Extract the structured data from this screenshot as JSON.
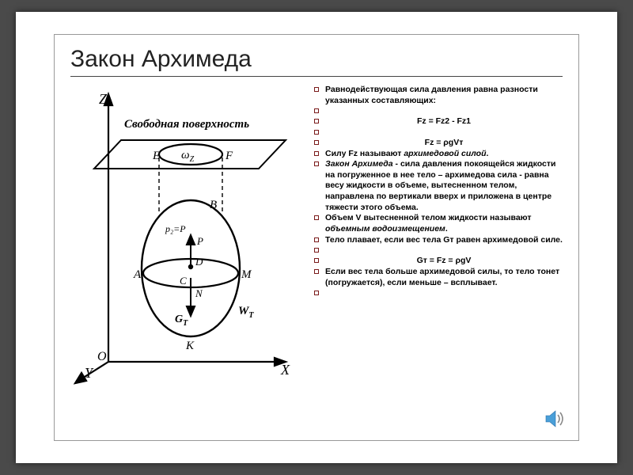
{
  "title": "Закон Архимеда",
  "diagram": {
    "stroke": "#000000",
    "stroke_width": 2.2,
    "thin_stroke": 1.2,
    "font_family": "Times New Roman, serif",
    "axis_font_size": 18,
    "label_font_size": 14,
    "script_font_size": 10,
    "axes": {
      "Z": "Z",
      "X": "X",
      "Y": "Y",
      "O": "O"
    },
    "surface_label": "Свободная поверхность",
    "omega": "ω",
    "omega_sub": "Z",
    "labels": {
      "E": "E",
      "F": "F",
      "B": "B",
      "A": "A",
      "M": "M",
      "D": "D",
      "C": "C",
      "N": "N",
      "K": "K",
      "P": "P",
      "p2eq": "p₂=P",
      "Gt": "G",
      "Gt_sub": "T",
      "Wt": "W",
      "Wt_sub": "T"
    }
  },
  "bullets": [
    {
      "html": "<b>Равнодействующая сила давления равна разности указанных составляющих:</b>"
    },
    {
      "html": ""
    },
    {
      "html": "<span class='formula'><b>Fz = Fz2 - Fz1</b></span>"
    },
    {
      "html": ""
    },
    {
      "html": "<span class='formula'><b>Fz = ρgVт</b></span>"
    },
    {
      "html": "<b>Силу  Fz  называют   <i>архимедовой силой</i>.</b>"
    },
    {
      "html": "<b><i>Закон Архимеда</i>  - сила давления покоящейся жидкости на погруженное в нее тело – архимедова сила - равна весу жидкости в объеме, вытесненном телом, направлена по вертикали вверх и приложена в центре тяжести этого объема.</b>"
    },
    {
      "html": "<b>Объем  V вытесненной телом жидкости называют <i>объемным водоизмещением</i>.</b>"
    },
    {
      "html": "<b>Тело плавает, если вес тела  Gт равен архимедовой силе.</b>"
    },
    {
      "html": ""
    },
    {
      "html": "<span class='formula'><b>Gт = Fz = ρgV</b></span>"
    },
    {
      "html": "<b>Если вес тела больше архимедовой силы, то тело тонет (погружается), если меньше – всплывает.</b>"
    },
    {
      "html": ""
    }
  ],
  "colors": {
    "bg": "#ffffff",
    "page_bg": "#4a4a4a",
    "border": "#999999",
    "bullet_border": "#7a1a1a",
    "speaker_fill": "#4a9fd8",
    "speaker_wave": "#888888"
  }
}
